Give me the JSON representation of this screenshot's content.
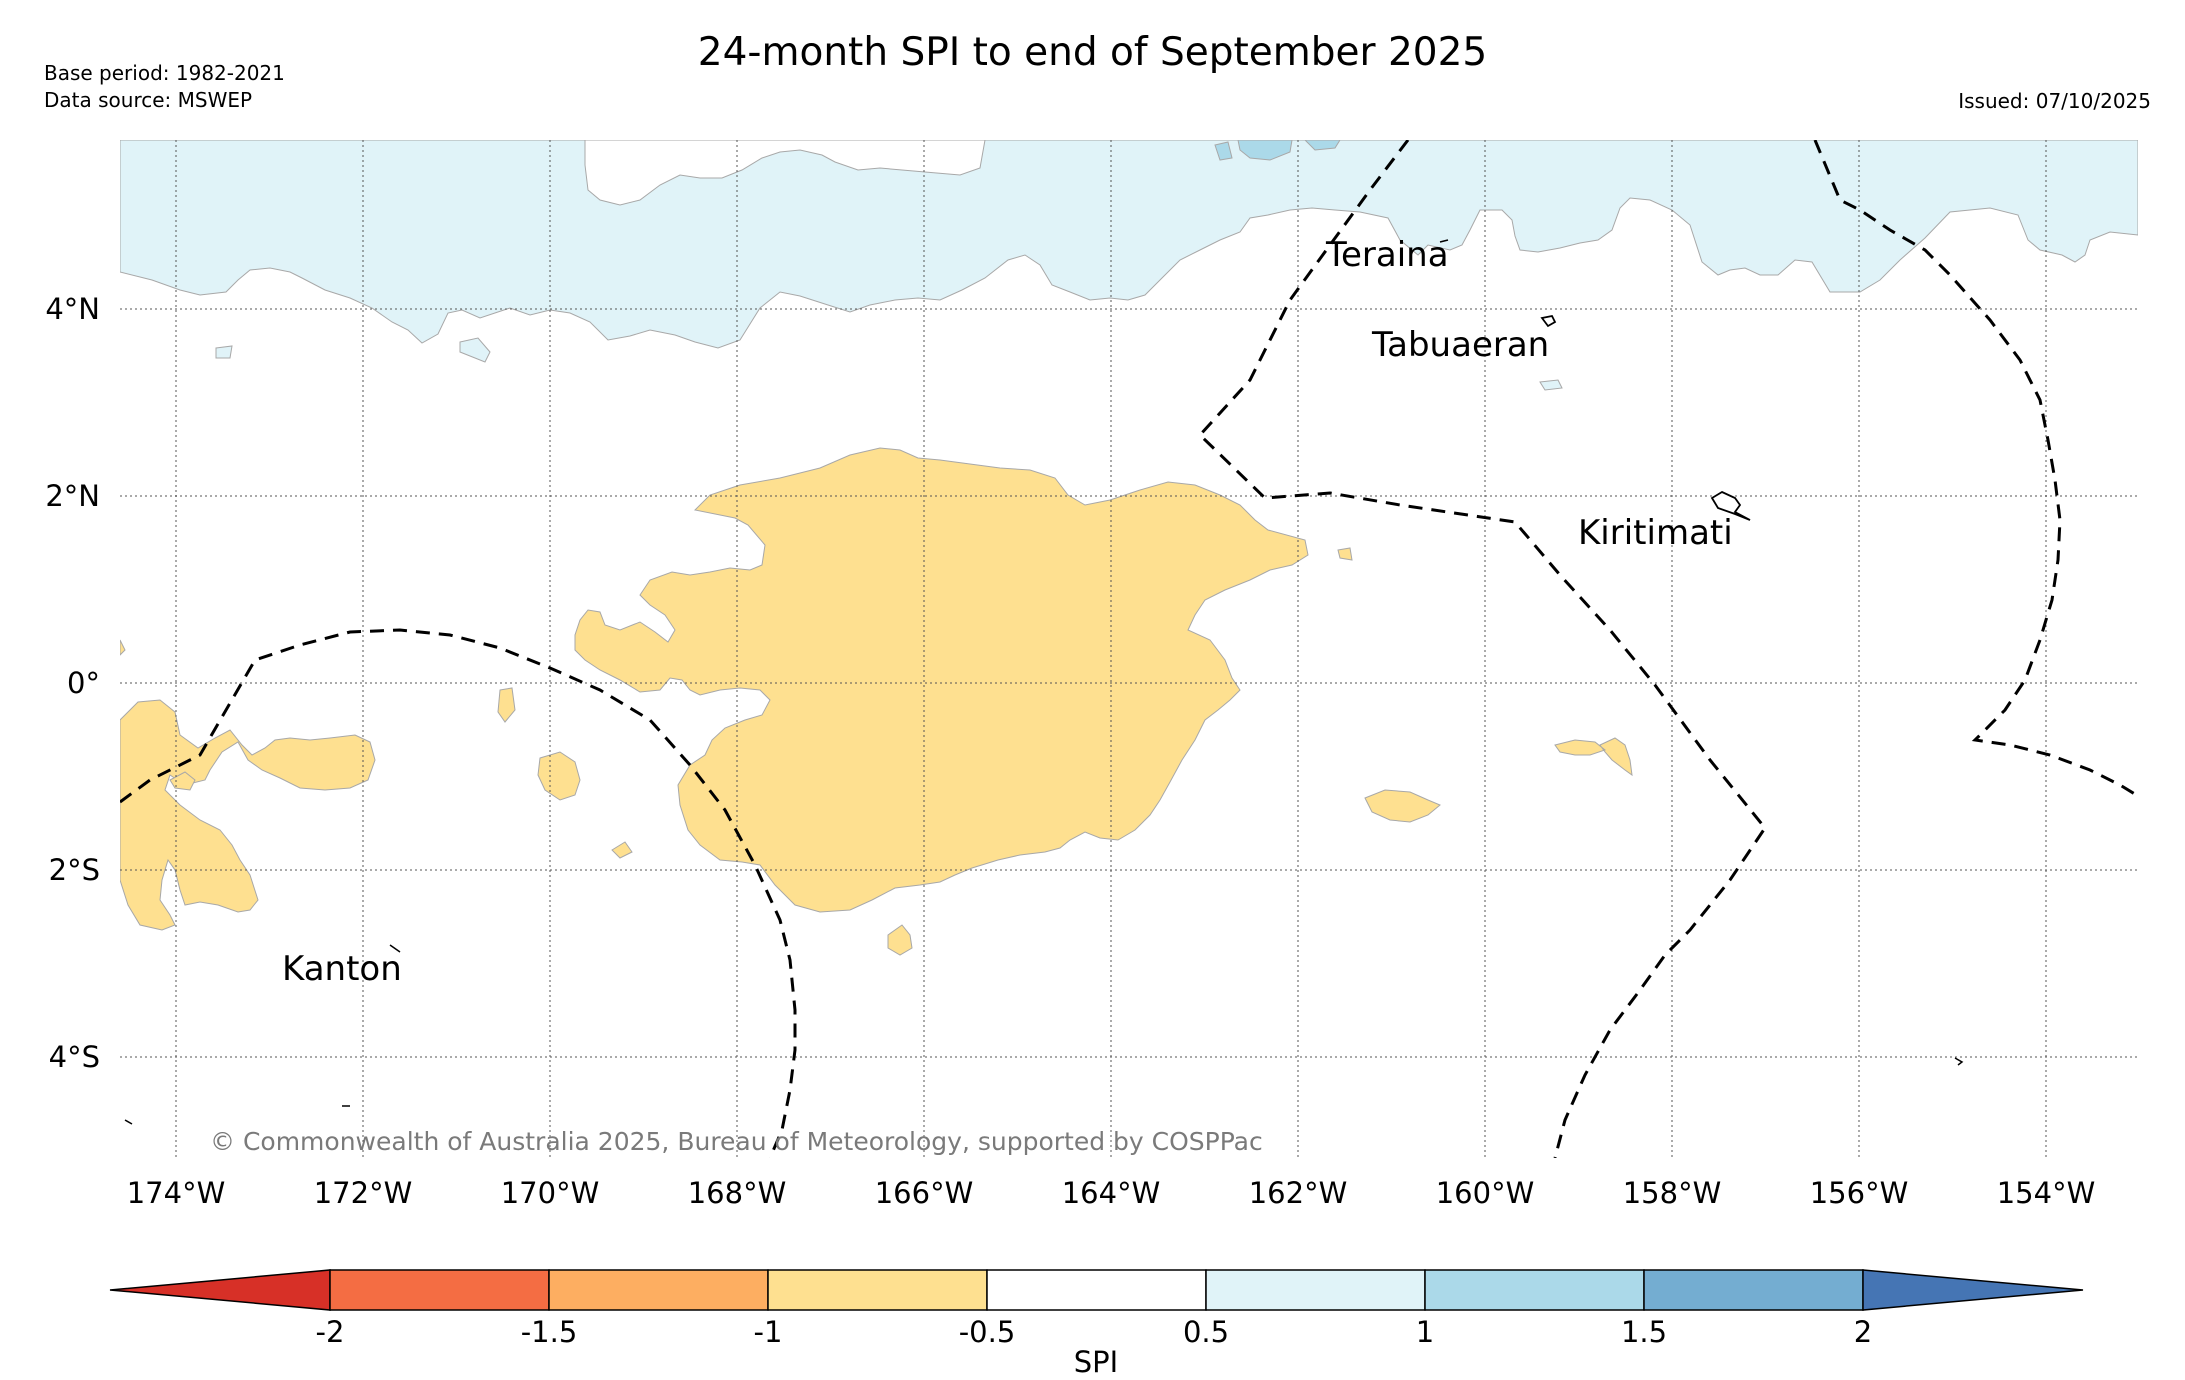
{
  "title": "24-month SPI to end of September 2025",
  "base_period": "Base period: 1982-2021",
  "data_source": "Data source: MSWEP",
  "issued": "Issued: 07/10/2025",
  "copyright": "© Commonwealth of Australia 2025, Bureau of Meteorology, supported by COSPPac",
  "map": {
    "lon_range": [
      -174.6,
      -153.0
    ],
    "lat_range": [
      -4.7,
      5.8
    ],
    "lon_ticks": [
      "174°W",
      "172°W",
      "170°W",
      "168°W",
      "166°W",
      "164°W",
      "162°W",
      "160°W",
      "158°W",
      "156°W",
      "154°W"
    ],
    "lat_ticks": [
      "4°N",
      "2°N",
      "0°",
      "2°S",
      "4°S"
    ],
    "places": [
      {
        "name": "Teraina"
      },
      {
        "name": "Tabuaeran"
      },
      {
        "name": "Kiritimati"
      },
      {
        "name": "Kanton"
      }
    ]
  },
  "colorbar": {
    "label": "SPI",
    "ticks": [
      "-2",
      "-1.5",
      "-1",
      "-0.5",
      "0.5",
      "1",
      "1.5",
      "2"
    ],
    "colors": {
      "below_-2": "#d73027",
      "-2_-1.5": "#f46d43",
      "-1.5_-1": "#fdae61",
      "-1_-0.5": "#fee090",
      "-0.5_0.5": "#ffffff",
      "0.5_1": "#e0f3f8",
      "1_1.5": "#abd9e9",
      "1.5_2": "#74add1",
      "above_2": "#4575b4"
    }
  }
}
